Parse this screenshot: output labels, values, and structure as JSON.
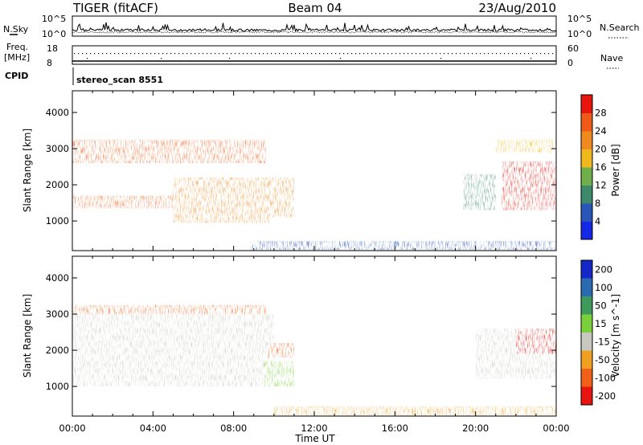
{
  "header": {
    "title_left": "TIGER (fitACF)",
    "title_center": "Beam 04",
    "title_right": "23/Aug/2010"
  },
  "top_panels": {
    "nsky_label": "N.Sky",
    "nsearch_label": "N.Search",
    "nsky_ticks": [
      "10^5",
      "10^0"
    ],
    "nsearch_ticks": [
      "10^5",
      "10^0"
    ],
    "freq_label_1": "Freq.",
    "freq_label_2": "[MHz]",
    "freq_ticks": [
      "18",
      "8"
    ],
    "nave_label": "Nave",
    "nave_ticks": [
      "60",
      "0"
    ],
    "cpid_label": "CPID",
    "cpid_value": "stereo_scan 8551"
  },
  "chart_data": [
    {
      "type": "heatmap",
      "panel": "power",
      "xlabel": "",
      "ylabel": "Slant Range [km]",
      "x_range_hours": [
        0,
        24
      ],
      "ylim": [
        180,
        4600
      ],
      "yticks": [
        "1000",
        "2000",
        "3000",
        "4000"
      ],
      "colorbar": {
        "label": "Power [dB]",
        "ticks": [
          "4",
          "8",
          "12",
          "16",
          "20",
          "24",
          "28"
        ],
        "colors": [
          "#1428e6",
          "#2a55b8",
          "#3d8a6a",
          "#6fae4a",
          "#f0b81e",
          "#f08a1e",
          "#f05a18",
          "#e8140e"
        ]
      },
      "echo_regions": [
        {
          "t_start": 0.0,
          "t_end": 9.6,
          "range_km": [
            2600,
            3250
          ],
          "level_db": 24
        },
        {
          "t_start": 0.0,
          "t_end": 7.8,
          "range_km": [
            1350,
            1700
          ],
          "level_db": 26
        },
        {
          "t_start": 5.0,
          "t_end": 9.8,
          "range_km": [
            950,
            2200
          ],
          "level_db": 22
        },
        {
          "t_start": 9.5,
          "t_end": 11.0,
          "range_km": [
            1100,
            2200
          ],
          "level_db": 20
        },
        {
          "t_start": 8.8,
          "t_end": 24.0,
          "range_km": [
            200,
            450
          ],
          "level_db": 6
        },
        {
          "t_start": 19.4,
          "t_end": 21.0,
          "range_km": [
            1300,
            2300
          ],
          "level_db": 10
        },
        {
          "t_start": 21.3,
          "t_end": 24.0,
          "range_km": [
            1300,
            2650
          ],
          "level_db": 28
        },
        {
          "t_start": 21.0,
          "t_end": 24.0,
          "range_km": [
            2900,
            3250
          ],
          "level_db": 18
        }
      ]
    },
    {
      "type": "heatmap",
      "panel": "velocity",
      "xlabel": "Time UT",
      "ylabel": "Slant Range [km]",
      "x_range_hours": [
        0,
        24
      ],
      "xticks": [
        "00:00",
        "04:00",
        "08:00",
        "12:00",
        "16:00",
        "20:00",
        "00:00"
      ],
      "ylim": [
        180,
        4600
      ],
      "yticks": [
        "1000",
        "2000",
        "3000",
        "4000"
      ],
      "colorbar": {
        "label": "Velocity [m s^-1]",
        "ticks": [
          "200",
          "100",
          "50",
          "15",
          "-15",
          "-50",
          "-100",
          "-200"
        ],
        "colors": [
          "#1428c8",
          "#2a6ab0",
          "#3d9a5a",
          "#7ad03a",
          "#c8c8c0",
          "#f0a020",
          "#f06018",
          "#e81410"
        ]
      },
      "echo_regions": [
        {
          "t_start": 0.0,
          "t_end": 9.6,
          "range_km": [
            2800,
            3250
          ],
          "velocity_ms": -100
        },
        {
          "t_start": 0.0,
          "t_end": 10.0,
          "range_km": [
            1000,
            3000
          ],
          "velocity_ms": 0
        },
        {
          "t_start": 9.7,
          "t_end": 11.0,
          "range_km": [
            1800,
            2200
          ],
          "velocity_ms": -80
        },
        {
          "t_start": 9.5,
          "t_end": 11.0,
          "range_km": [
            1000,
            1700
          ],
          "velocity_ms": 40
        },
        {
          "t_start": 10.0,
          "t_end": 24.0,
          "range_km": [
            200,
            450
          ],
          "velocity_ms": -30
        },
        {
          "t_start": 20.0,
          "t_end": 24.0,
          "range_km": [
            1200,
            2600
          ],
          "velocity_ms": 0
        },
        {
          "t_start": 22.0,
          "t_end": 24.0,
          "range_km": [
            1900,
            2600
          ],
          "velocity_ms": -150
        }
      ]
    }
  ]
}
